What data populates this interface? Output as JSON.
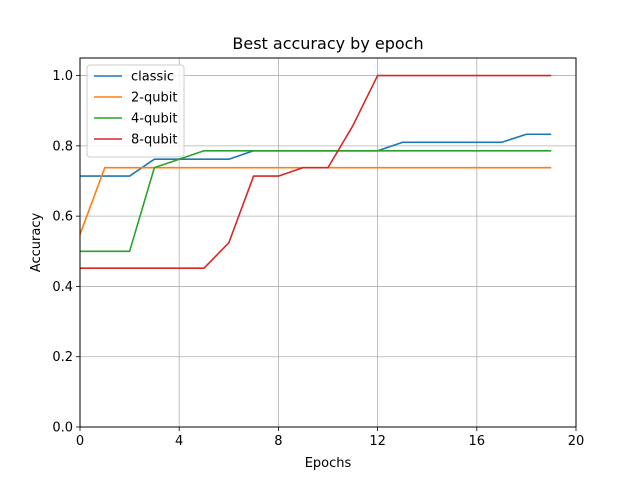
{
  "chart_data": {
    "type": "line",
    "title": "Best accuracy by epoch",
    "xlabel": "Epochs",
    "ylabel": "Accuracy",
    "xlim": [
      0,
      20
    ],
    "ylim": [
      0.0,
      1.05
    ],
    "xticks": [
      0,
      4,
      8,
      12,
      16,
      20
    ],
    "xtick_labels": [
      "0",
      "4",
      "8",
      "12",
      "16",
      "20"
    ],
    "yticks": [
      0.0,
      0.2,
      0.4,
      0.6,
      0.8,
      1.0
    ],
    "ytick_labels": [
      "0.0",
      "0.2",
      "0.4",
      "0.6",
      "0.8",
      "1.0"
    ],
    "grid": true,
    "legend_position": "top-left",
    "x": [
      0,
      1,
      2,
      3,
      4,
      5,
      6,
      7,
      8,
      9,
      10,
      11,
      12,
      13,
      14,
      15,
      16,
      17,
      18,
      19
    ],
    "series": [
      {
        "name": "classic",
        "color": "#1f77b4",
        "values": [
          0.714,
          0.714,
          0.714,
          0.762,
          0.762,
          0.762,
          0.762,
          0.786,
          0.786,
          0.786,
          0.786,
          0.786,
          0.786,
          0.81,
          0.81,
          0.81,
          0.81,
          0.81,
          0.833,
          0.833
        ]
      },
      {
        "name": "2-qubit",
        "color": "#ff7f0e",
        "values": [
          0.548,
          0.738,
          0.738,
          0.738,
          0.738,
          0.738,
          0.738,
          0.738,
          0.738,
          0.738,
          0.738,
          0.738,
          0.738,
          0.738,
          0.738,
          0.738,
          0.738,
          0.738,
          0.738,
          0.738
        ]
      },
      {
        "name": "4-qubit",
        "color": "#2ca02c",
        "values": [
          0.5,
          0.5,
          0.5,
          0.738,
          0.762,
          0.786,
          0.786,
          0.786,
          0.786,
          0.786,
          0.786,
          0.786,
          0.786,
          0.786,
          0.786,
          0.786,
          0.786,
          0.786,
          0.786,
          0.786
        ]
      },
      {
        "name": "8-qubit",
        "color": "#d62728",
        "values": [
          0.452,
          0.452,
          0.452,
          0.452,
          0.452,
          0.452,
          0.524,
          0.714,
          0.714,
          0.738,
          0.738,
          0.857,
          1.0,
          1.0,
          1.0,
          1.0,
          1.0,
          1.0,
          1.0,
          1.0
        ]
      }
    ]
  }
}
